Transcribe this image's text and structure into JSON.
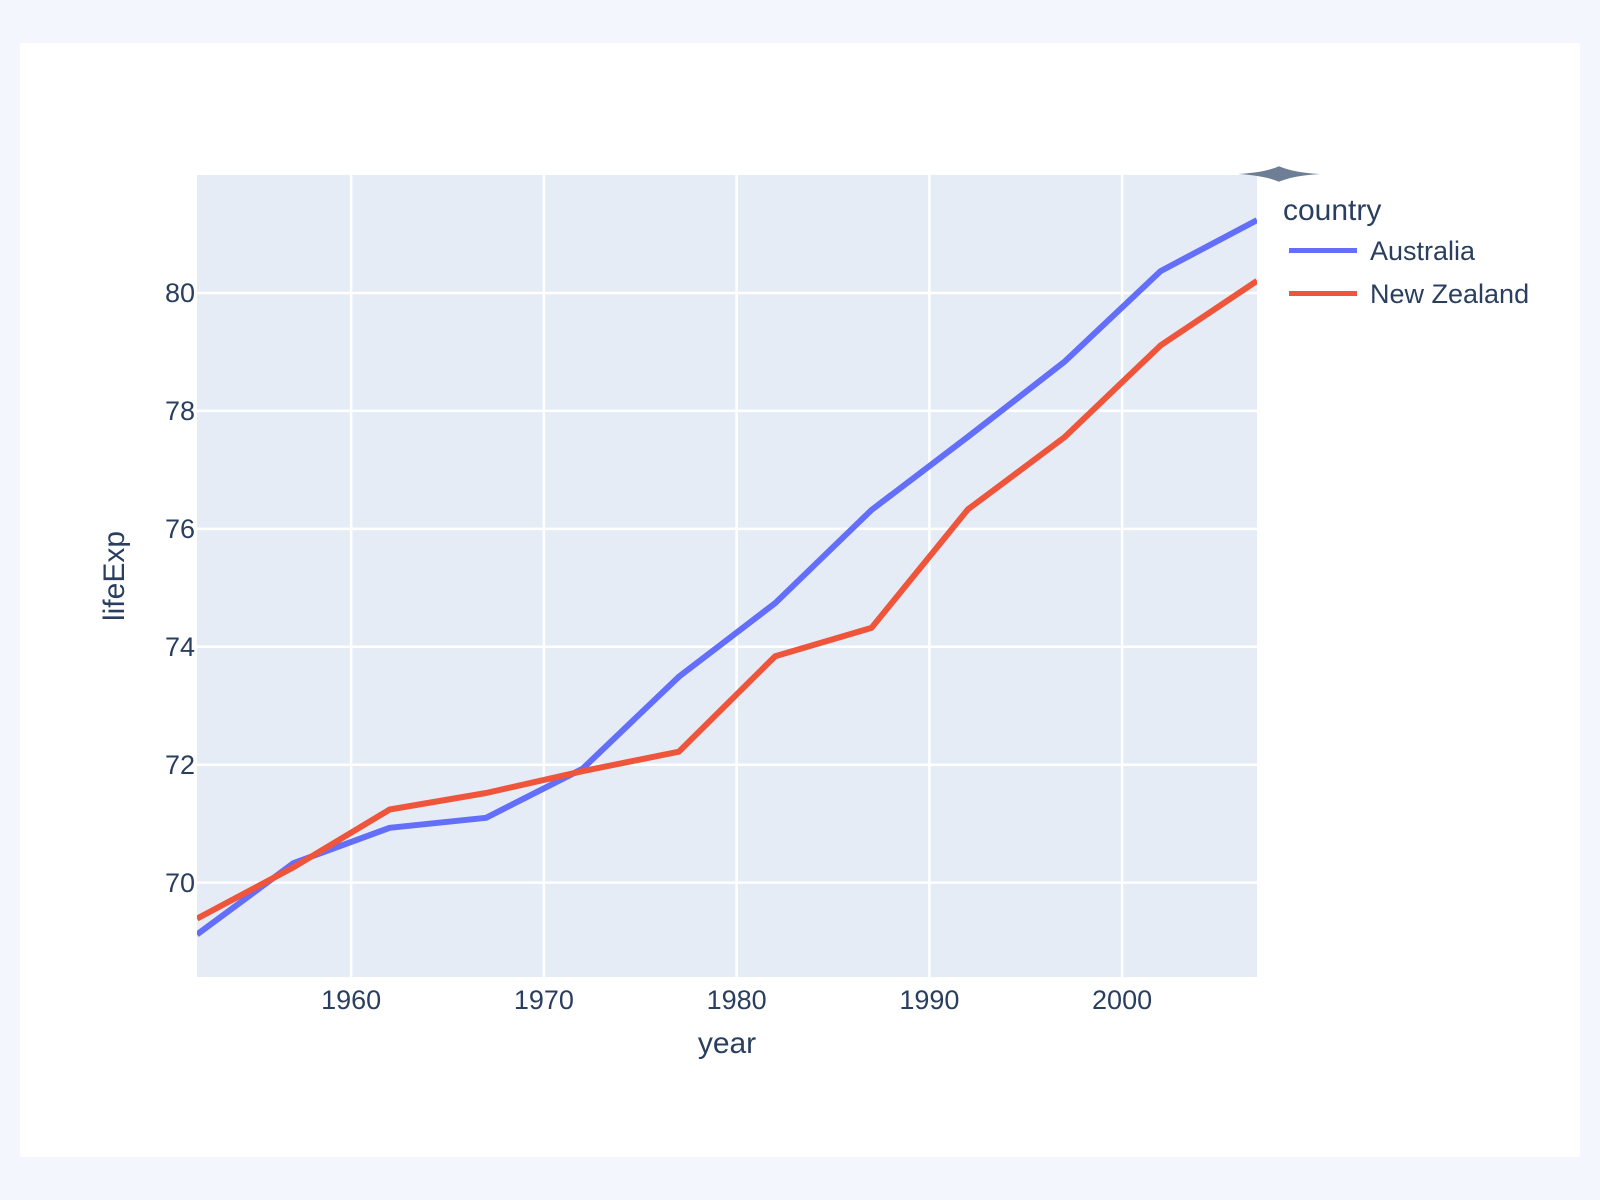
{
  "page": {
    "background": "#f3f6fc",
    "card_background": "#ffffff"
  },
  "chart": {
    "font_color": "#2a3f5f",
    "plot_background": "#e5ecf6",
    "grid_color": "#ffffff",
    "modebar_icon_color": "#6e7f95"
  },
  "icons": {
    "modebar_toggle_icon": "horizontal-double-arrow"
  },
  "chart_data": {
    "type": "line",
    "title": "",
    "xlabel": "year",
    "ylabel": "lifeExp",
    "legend_title": "country",
    "legend_position": "top-right-outside",
    "grid": true,
    "x": [
      1952,
      1957,
      1962,
      1967,
      1972,
      1977,
      1982,
      1987,
      1992,
      1997,
      2002,
      2007
    ],
    "xlim": [
      1952,
      2007
    ],
    "ylim": [
      68.4,
      82.0
    ],
    "xticks": [
      1960,
      1970,
      1980,
      1990,
      2000
    ],
    "yticks": [
      70,
      72,
      74,
      76,
      78,
      80
    ],
    "series": [
      {
        "name": "Australia",
        "color": "#636efa",
        "values": [
          69.12,
          70.33,
          70.93,
          71.1,
          71.93,
          73.49,
          74.74,
          76.32,
          77.56,
          78.83,
          80.37,
          81.235
        ]
      },
      {
        "name": "New Zealand",
        "color": "#ef553b",
        "values": [
          69.39,
          70.26,
          71.24,
          71.52,
          71.89,
          72.22,
          73.84,
          74.32,
          76.33,
          77.55,
          79.11,
          80.204
        ]
      }
    ]
  }
}
